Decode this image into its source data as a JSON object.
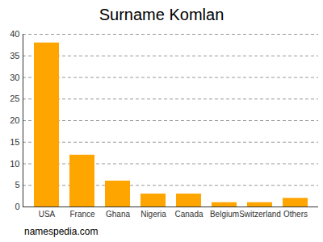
{
  "chart_data": {
    "type": "bar",
    "title": "Surname Komlan",
    "categories": [
      "USA",
      "France",
      "Ghana",
      "Nigeria",
      "Canada",
      "Belgium",
      "Switzerland",
      "Others"
    ],
    "values": [
      38,
      12,
      6,
      3,
      3,
      1,
      1,
      2
    ],
    "color": "#ffa500",
    "ylim": [
      0,
      40
    ],
    "yticks": [
      0,
      5,
      10,
      15,
      20,
      25,
      30,
      35,
      40
    ],
    "grid": true,
    "caption": "namespedia.com"
  }
}
